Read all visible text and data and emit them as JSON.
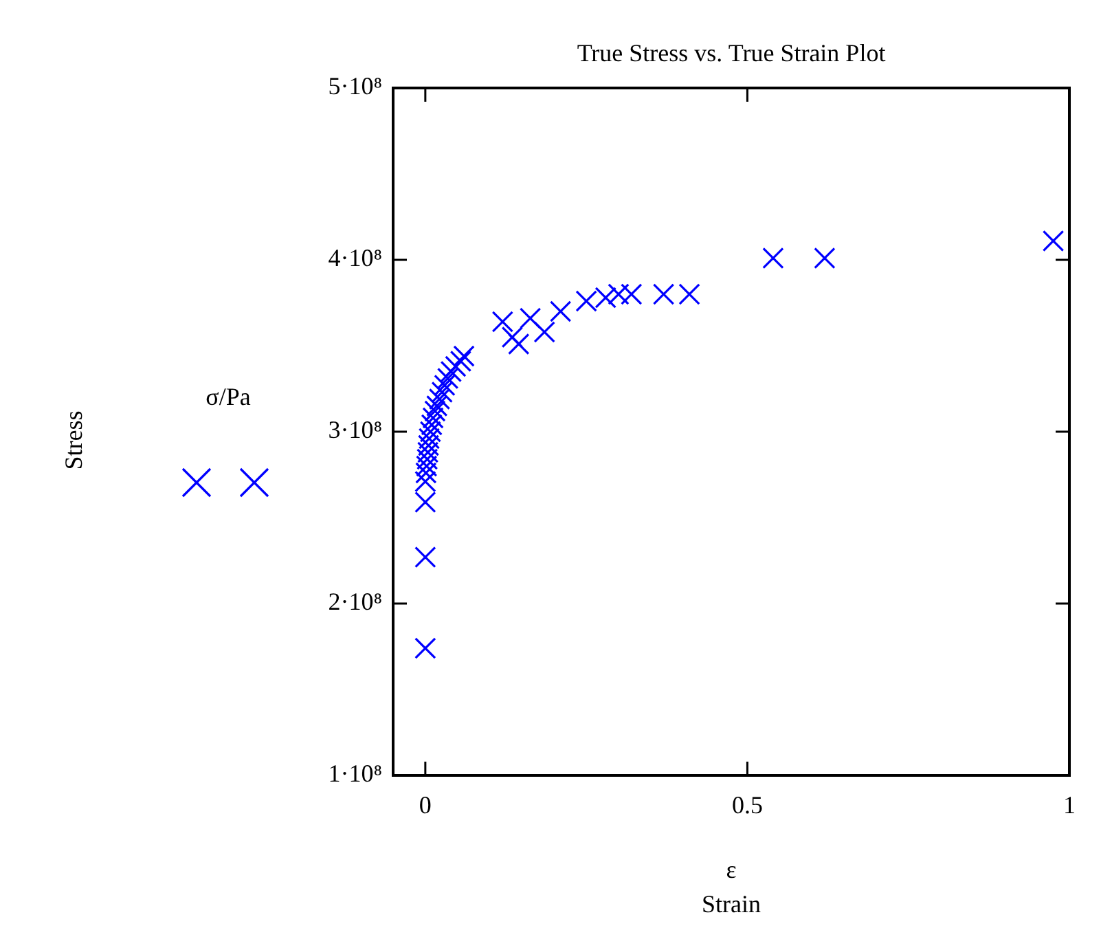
{
  "chart_data": {
    "type": "scatter",
    "title": "True Stress vs. True Strain Plot",
    "xlabel": "Strain",
    "annotations": [
      "ε",
      "σ/Pa",
      "Stress"
    ],
    "x": [
      0,
      0,
      0,
      0,
      0.001,
      0.002,
      0.003,
      0.004,
      0.005,
      0.006,
      0.008,
      0.01,
      0.012,
      0.015,
      0.018,
      0.022,
      0.026,
      0.03,
      0.035,
      0.04,
      0.047,
      0.055,
      0.06,
      0.12,
      0.135,
      0.145,
      0.163,
      0.185,
      0.21,
      0.25,
      0.28,
      0.3,
      0.32,
      0.37,
      0.41,
      0.54,
      0.62,
      0.975
    ],
    "series": [
      {
        "color": "#0000ff",
        "values": [
          174000000.0,
          227000000.0,
          259000000.0,
          271000000.0,
          276000000.0,
          280000000.0,
          284000000.0,
          288000000.0,
          292000000.0,
          296000000.0,
          300000000.0,
          304000000.0,
          308000000.0,
          312000000.0,
          315000000.0,
          319000000.0,
          323000000.0,
          327000000.0,
          331000000.0,
          335000000.0,
          338000000.0,
          341000000.0,
          344000000.0,
          364000000.0,
          355000000.0,
          351000000.0,
          366000000.0,
          358000000.0,
          370000000.0,
          376000000.0,
          378000000.0,
          380000000.0,
          380000000.0,
          380000000.0,
          380000000.0,
          401000000.0,
          401000000.0,
          411000000.0
        ]
      }
    ],
    "xlim": [
      -0.05,
      1
    ],
    "xticks": [
      0,
      0.5,
      1
    ],
    "ylim": [
      100000000.0,
      500000000.0
    ],
    "yticks": [
      {
        "value": 100000000.0,
        "label": "1·10⁸"
      },
      {
        "value": 200000000.0,
        "label": "2·10⁸"
      },
      {
        "value": 300000000.0,
        "label": "3·10⁸"
      },
      {
        "value": 400000000.0,
        "label": "4·10⁸"
      },
      {
        "value": 500000000.0,
        "label": "5·10⁸"
      }
    ],
    "grid": false,
    "legend": false,
    "marker": "cross"
  }
}
